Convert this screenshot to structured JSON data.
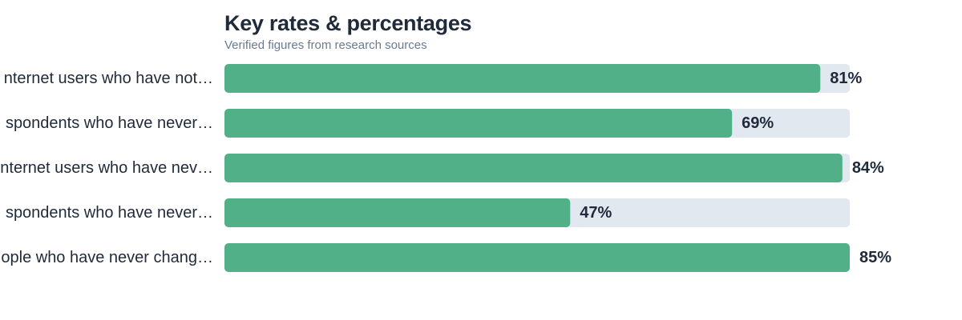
{
  "chart_data": {
    "type": "bar",
    "orientation": "horizontal",
    "title": "Key rates & percentages",
    "subtitle": "Verified figures from research sources",
    "categories": [
      "Internet users who have not…",
      "Respondents who have never…",
      "Internet users who have nev…",
      "Respondents who have never…",
      "People who have never chang…"
    ],
    "visible_labels": [
      "nternet users who have not…",
      "spondents who have never…",
      "nternet users who have nev…",
      "spondents who have never…",
      "ople who have never chang…"
    ],
    "values": [
      81,
      69,
      84,
      47,
      85
    ],
    "value_labels": [
      "81%",
      "69%",
      "84%",
      "47%",
      "85%"
    ],
    "unit": "%",
    "xlim": [
      0,
      85
    ],
    "grid": false,
    "legend": "none"
  },
  "colors": {
    "bar": "#52b088",
    "track": "#e1e8ef",
    "title": "#1f2a3a",
    "subtitle": "#6b7a8f",
    "label": "#1f2a3a"
  }
}
